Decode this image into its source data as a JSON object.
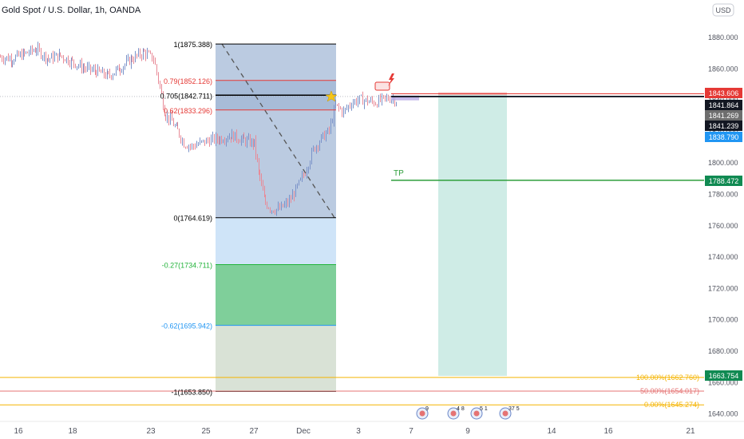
{
  "header": {
    "symbol_title": "Gold Spot / U.S. Dollar, 1h, OANDA",
    "currency_badge": "USD"
  },
  "colors": {
    "candle_up": "#7b93c9",
    "candle_down": "#e88a97",
    "fib_box": "#3c6aa8",
    "fib_ext_blue": "#cfe4f8",
    "fib_ext_green": "#7fcf9a",
    "fib_ext_gray": "#d9e2d6",
    "tp_green": "#2e9e3b",
    "target_zone": "#bfe6dd",
    "price_red": "#e53935",
    "price_black": "#131722",
    "price_gray": "#6e6e6e",
    "price_blue": "#2196f3",
    "price_green": "#108a52",
    "orange_levels": "#f5b400"
  },
  "chart_data": {
    "type": "candlestick",
    "title": "Gold Spot / U.S. Dollar, 1h, OANDA",
    "ylim": [
      1637,
      1893
    ],
    "y_ticks": [
      "1880.000",
      "1860.000",
      "1840.000",
      "1820.000",
      "1800.000",
      "1780.000",
      "1760.000",
      "1740.000",
      "1720.000",
      "1700.000",
      "1680.000",
      "1660.000",
      "1640.000"
    ],
    "y_tick_values": [
      1880,
      1860,
      1840,
      1820,
      1800,
      1780,
      1760,
      1740,
      1720,
      1700,
      1680,
      1660,
      1640
    ],
    "x_ticks": [
      "16",
      "18",
      "23",
      "25",
      "27",
      "Dec",
      "3",
      "7",
      "9",
      "14",
      "16",
      "21"
    ],
    "price_path": [
      {
        "x": "Nov 15",
        "y": 1867
      },
      {
        "x": "Nov 16",
        "y": 1866
      },
      {
        "x": "Nov 17",
        "y": 1870
      },
      {
        "x": "Nov 18",
        "y": 1866
      },
      {
        "x": "Nov 19",
        "y": 1858
      },
      {
        "x": "Nov 20",
        "y": 1862
      },
      {
        "x": "Nov 21",
        "y": 1867
      },
      {
        "x": "Nov 22",
        "y": 1872
      },
      {
        "x": "Nov 23",
        "y": 1858
      },
      {
        "x": "Nov 24",
        "y": 1828
      },
      {
        "x": "Nov 25",
        "y": 1808
      },
      {
        "x": "Nov 26",
        "y": 1812
      },
      {
        "x": "Nov 27",
        "y": 1809
      },
      {
        "x": "Nov 28",
        "y": 1810
      },
      {
        "x": "Nov 29",
        "y": 1775
      },
      {
        "x": "Nov 30",
        "y": 1768
      },
      {
        "x": "Dec 1",
        "y": 1785
      },
      {
        "x": "Dec 2",
        "y": 1810
      },
      {
        "x": "Dec 3",
        "y": 1836
      },
      {
        "x": "Dec 4",
        "y": 1838
      },
      {
        "x": "Dec 5",
        "y": 1840
      },
      {
        "x": "Dec 6",
        "y": 1841
      }
    ],
    "fibonacci": {
      "levels": [
        {
          "ratio": "1",
          "price": "1875.388",
          "label": "1(1875.388)",
          "color": "#000000"
        },
        {
          "ratio": "0.79",
          "price": "1852.126",
          "label": "0.79(1852.126)",
          "color": "#e53935"
        },
        {
          "ratio": "0.705",
          "price": "1842.711",
          "label": "0.705(1842.711)",
          "color": "#000000"
        },
        {
          "ratio": "0.62",
          "price": "1833.296",
          "label": "0.62(1833.296)",
          "color": "#e53935"
        },
        {
          "ratio": "0",
          "price": "1764.619",
          "label": "0(1764.619)",
          "color": "#000000"
        },
        {
          "ratio": "-0.27",
          "price": "1734.711",
          "label": "-0.27(1734.711)",
          "color": "#22b33a"
        },
        {
          "ratio": "-0.62",
          "price": "1695.942",
          "label": "-0.62(1695.942)",
          "color": "#2196f3"
        },
        {
          "ratio": "-1",
          "price": "1653.850",
          "label": "-1(1653.850)",
          "color": "#000000"
        }
      ],
      "zones": [
        {
          "from": 1875.388,
          "to": 1764.619,
          "fill": "#3c6aa8"
        },
        {
          "from": 1764.619,
          "to": 1734.711,
          "fill": "#cfe4f8"
        },
        {
          "from": 1734.711,
          "to": 1695.942,
          "fill": "#7fcf9a"
        },
        {
          "from": 1695.942,
          "to": 1653.85,
          "fill": "#d9e2d6"
        }
      ]
    },
    "tp": {
      "label": "TP",
      "price": 1788.472
    },
    "target_zone": {
      "from": 1843.6,
      "to": 1663.754
    },
    "orange_levels": [
      {
        "label": "100.00%(1662.760)",
        "price": 1662.76,
        "color": "#f5b400"
      },
      {
        "label": "50.00%(1654.017)",
        "price": 1654.017,
        "color": "#e57373"
      },
      {
        "label": "0.00%(1645.274)",
        "price": 1645.274,
        "color": "#f5b400"
      }
    ],
    "price_labels": [
      {
        "text": "1843.606",
        "price": 1843.606,
        "bg": "#e53935",
        "fg": "#ffffff"
      },
      {
        "text": "1841.864",
        "price": 1841.864,
        "bg": "#131722",
        "fg": "#ffffff"
      },
      {
        "text": "1841.269",
        "price": 1841.269,
        "bg": "#6e6e6e",
        "fg": "#ffffff"
      },
      {
        "text": "1841.239",
        "price": 1841.239,
        "bg": "#131722",
        "fg": "#ffffff"
      },
      {
        "text": "1838.790",
        "price": 1838.79,
        "bg": "#2196f3",
        "fg": "#ffffff"
      },
      {
        "text": "1788.472",
        "price": 1788.472,
        "bg": "#108a52",
        "fg": "#ffffff"
      },
      {
        "text": "1663.754",
        "price": 1663.754,
        "bg": "#108a52",
        "fg": "#ffffff"
      }
    ],
    "event_markers": [
      "9",
      "4",
      "8",
      "5",
      "1",
      "37",
      "5"
    ]
  }
}
